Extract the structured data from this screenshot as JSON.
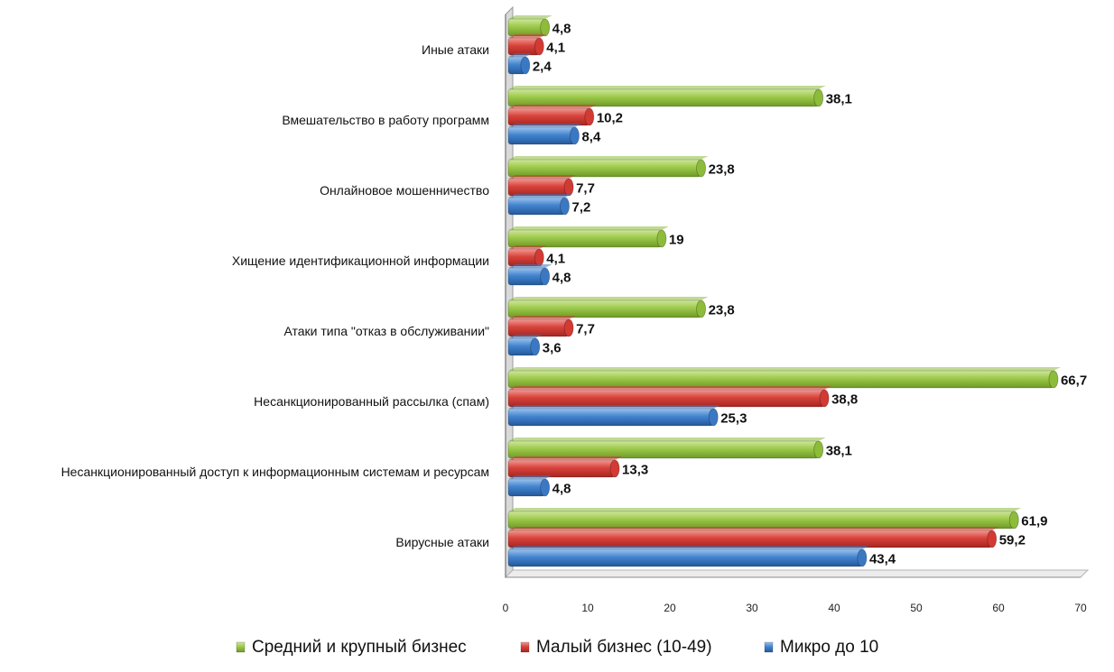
{
  "chart_data": {
    "type": "bar",
    "orientation": "horizontal",
    "categories": [
      "Иные атаки",
      "Вмешательство в работу программ",
      "Онлайновое мошенничество",
      "Хищение идентификационной информации",
      "Атаки типа \"отказ в обслуживании\"",
      "Несанкционированный рассылка (спам)",
      "Несанкционированный доступ к информационным системам и ресурсам",
      "Вирусные атаки"
    ],
    "series": [
      {
        "name": "Средний и крупный бизнес",
        "color": "#8dbb3a",
        "values": [
          4.8,
          38.1,
          23.8,
          19,
          23.8,
          66.7,
          38.1,
          61.9
        ],
        "labels": [
          "4,8",
          "38,1",
          "23,8",
          "19",
          "23,8",
          "66,7",
          "38,1",
          "61,9"
        ]
      },
      {
        "name": "Малый бизнес (10-49)",
        "color": "#d23a33",
        "values": [
          4.1,
          10.2,
          7.7,
          4.1,
          7.7,
          38.8,
          13.3,
          59.2
        ],
        "labels": [
          "4,1",
          "10,2",
          "7,7",
          "4,1",
          "7,7",
          "38,8",
          "13,3",
          "59,2"
        ]
      },
      {
        "name": "Микро до 10",
        "color": "#3b78c4",
        "values": [
          2.4,
          8.4,
          7.2,
          4.8,
          3.6,
          25.3,
          4.8,
          43.4
        ],
        "labels": [
          "2,4",
          "8,4",
          "7,2",
          "4,8",
          "3,6",
          "25,3",
          "4,8",
          "43,4"
        ]
      }
    ],
    "xlim": [
      0,
      70
    ],
    "ticks": [
      "0",
      "10",
      "20",
      "30",
      "40",
      "50",
      "60",
      "70"
    ],
    "grid": false,
    "legend_position": "bottom"
  }
}
